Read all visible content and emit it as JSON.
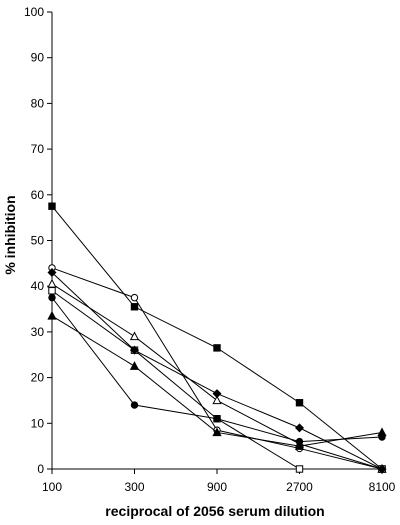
{
  "chart_data": {
    "type": "line",
    "title": "",
    "xlabel": "reciprocal of 2056 serum dilution",
    "ylabel": "% inhibition",
    "x": [
      100,
      300,
      900,
      2700,
      8100
    ],
    "x_tick_labels": [
      "100",
      "300",
      "900",
      "2700",
      "8100"
    ],
    "x_scale": "log",
    "ylim": [
      0,
      100
    ],
    "y_ticks": [
      0,
      10,
      20,
      30,
      40,
      50,
      60,
      70,
      80,
      90,
      100
    ],
    "y_tick_labels": [
      "0",
      "10",
      "20",
      "30",
      "40",
      "50",
      "60",
      "70",
      "80",
      "90",
      "100"
    ],
    "grid": false,
    "legend": "none",
    "series": [
      {
        "marker": "filled-square",
        "values": [
          57.5,
          35.5,
          26.5,
          14.5,
          0
        ]
      },
      {
        "marker": "open-circle",
        "values": [
          44,
          37.5,
          8.5,
          4.5,
          0
        ]
      },
      {
        "marker": "open-triangle",
        "values": [
          40.5,
          29,
          15,
          5.5,
          0
        ]
      },
      {
        "marker": "open-square",
        "values": [
          39,
          26,
          11,
          0,
          0
        ]
      },
      {
        "marker": "filled-circle",
        "values": [
          37.5,
          14,
          11,
          6,
          7
        ]
      },
      {
        "marker": "filled-diamond",
        "values": [
          43,
          26,
          16.5,
          9,
          0
        ]
      },
      {
        "marker": "filled-triangle",
        "values": [
          33.5,
          22.5,
          8,
          5,
          8
        ]
      }
    ]
  }
}
